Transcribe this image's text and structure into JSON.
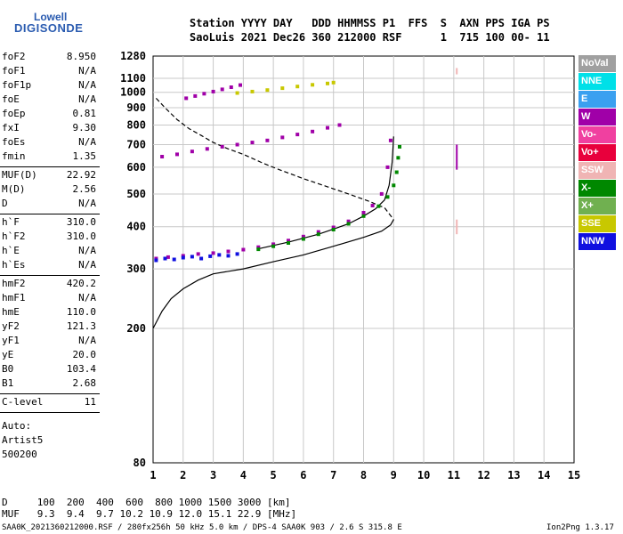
{
  "logo": {
    "line1": "Lowell",
    "line2": "DIGISONDE"
  },
  "header": {
    "line1": "Station YYYY DAY   DDD HHMMSS P1  FFS  S  AXN PPS IGA PS",
    "line2": "SaoLuis 2021 Dec26 360 212000 RSF      1  715 100 00- 11"
  },
  "params": [
    {
      "name": "foF2",
      "value": "8.950"
    },
    {
      "name": "foF1",
      "value": "N/A"
    },
    {
      "name": "foF1p",
      "value": "N/A"
    },
    {
      "name": "foE",
      "value": "N/A"
    },
    {
      "name": "foEp",
      "value": "0.81"
    },
    {
      "name": "fxI",
      "value": "9.30"
    },
    {
      "name": "foEs",
      "value": "N/A"
    },
    {
      "name": "fmin",
      "value": "1.35"
    },
    {
      "name": "MUF(D)",
      "value": "22.92"
    },
    {
      "name": "M(D)",
      "value": "2.56"
    },
    {
      "name": "D",
      "value": "N/A"
    },
    {
      "name": "h`F",
      "value": "310.0"
    },
    {
      "name": "h`F2",
      "value": "310.0"
    },
    {
      "name": "h`E",
      "value": "N/A"
    },
    {
      "name": "h`Es",
      "value": "N/A"
    },
    {
      "name": "hmF2",
      "value": "420.2"
    },
    {
      "name": "hmF1",
      "value": "N/A"
    },
    {
      "name": "hmE",
      "value": "110.0"
    },
    {
      "name": "yF2",
      "value": "121.3"
    },
    {
      "name": "yF1",
      "value": "N/A"
    },
    {
      "name": "yE",
      "value": "20.0"
    },
    {
      "name": "B0",
      "value": "103.4"
    },
    {
      "name": "B1",
      "value": "2.68"
    },
    {
      "name": "C-level",
      "value": "11"
    }
  ],
  "auto": {
    "line1": "Auto:",
    "line2": "Artist5",
    "line3": "500200"
  },
  "legend": [
    {
      "label": "NoVal",
      "color": "#a0a0a0"
    },
    {
      "label": "NNE",
      "color": "#00e0e8"
    },
    {
      "label": "E",
      "color": "#3aa0f0"
    },
    {
      "label": "W",
      "color": "#a000a8"
    },
    {
      "label": "Vo-",
      "color": "#f040a0"
    },
    {
      "label": "Vo+",
      "color": "#e8003c"
    },
    {
      "label": "SSW",
      "color": "#f0b4b4"
    },
    {
      "label": "X-",
      "color": "#008800"
    },
    {
      "label": "X+",
      "color": "#70b050"
    },
    {
      "label": "SSE",
      "color": "#c8c800"
    },
    {
      "label": "NNW",
      "color": "#1010e0"
    }
  ],
  "bottom": {
    "line1": "D     100  200  400  600  800 1000 1500 3000 [km]",
    "line2": "MUF   9.3  9.4  9.7 10.2 10.9 12.0 15.1 22.9 [MHz]"
  },
  "footer": {
    "left": "SAA0K_2021360212000.RSF / 280fx256h 50 kHz 5.0 km / DPS-4 SAA0K 903 / 2.6 S 315.8 E",
    "right": "Ion2Png 1.3.17"
  },
  "chart_data": {
    "type": "scatter",
    "x_ticks": [
      "1",
      "2",
      "3",
      "4",
      "5",
      "6",
      "7",
      "8",
      "9",
      "10",
      "11",
      "12",
      "13",
      "14",
      "15"
    ],
    "y_ticks": [
      "80",
      "200",
      "300",
      "400",
      "500",
      "600",
      "700",
      "800",
      "900",
      "1000",
      "1100",
      "1280"
    ],
    "xlim": [
      1,
      15
    ],
    "ylim": [
      80,
      1280
    ],
    "y_scale": "log",
    "grid": true,
    "series": [
      {
        "name": "W",
        "color": "#a000a8",
        "x": [
          1.1,
          1.5,
          2.0,
          2.5,
          3.0,
          3.5,
          4.0,
          4.5,
          5.0,
          5.5,
          6.0,
          6.5,
          7.0,
          7.5,
          8.0,
          8.3,
          8.6,
          8.8,
          8.9
        ],
        "y": [
          322,
          325,
          328,
          332,
          334,
          338,
          342,
          348,
          355,
          364,
          374,
          386,
          398,
          415,
          440,
          462,
          500,
          600,
          720
        ]
      },
      {
        "name": "X-",
        "color": "#008800",
        "x": [
          4.5,
          5.0,
          5.5,
          6.0,
          6.5,
          7.0,
          7.5,
          8.0,
          8.5,
          8.8,
          9.0,
          9.1,
          9.15,
          9.2
        ],
        "y": [
          343,
          350,
          358,
          368,
          380,
          392,
          408,
          430,
          460,
          490,
          530,
          580,
          640,
          690
        ]
      },
      {
        "name": "NNW",
        "color": "#1010e0",
        "x": [
          1.1,
          1.4,
          1.7,
          2.0,
          2.3,
          2.6,
          2.9,
          3.2,
          3.5,
          3.8
        ],
        "y": [
          318,
          322,
          320,
          324,
          326,
          322,
          327,
          330,
          328,
          332
        ]
      },
      {
        "name": "2-hop",
        "color": "#a000a8",
        "x": [
          1.3,
          1.8,
          2.3,
          2.8,
          3.3,
          3.8,
          4.3,
          4.8,
          5.3,
          5.8,
          6.3,
          6.8,
          7.2
        ],
        "y": [
          645,
          655,
          668,
          680,
          690,
          700,
          710,
          720,
          735,
          750,
          765,
          785,
          800
        ]
      },
      {
        "name": "3-hop",
        "color": "#a000a8",
        "x": [
          2.1,
          2.4,
          2.7,
          3.0,
          3.3,
          3.6,
          3.9
        ],
        "y": [
          960,
          975,
          990,
          1005,
          1020,
          1035,
          1050
        ]
      },
      {
        "name": "SSE",
        "color": "#c8c800",
        "x": [
          3.8,
          4.3,
          4.8,
          5.3,
          5.8,
          6.3,
          6.8,
          7.0
        ],
        "y": [
          995,
          1005,
          1015,
          1028,
          1040,
          1052,
          1062,
          1068
        ]
      }
    ],
    "lines": [
      {
        "style": "solid",
        "x": [
          1.0,
          1.3,
          1.6,
          2.0,
          2.5,
          3.0,
          4.0,
          5.0,
          6.0,
          7.0,
          8.0,
          8.6,
          8.9,
          9.0
        ],
        "y": [
          200,
          225,
          245,
          262,
          278,
          290,
          300,
          315,
          330,
          350,
          372,
          388,
          405,
          420
        ]
      },
      {
        "style": "solid",
        "x": [
          4.5,
          5.5,
          6.5,
          7.5,
          8.0,
          8.4,
          8.7,
          8.85,
          8.95,
          9.0
        ],
        "y": [
          344,
          360,
          380,
          408,
          430,
          452,
          480,
          530,
          620,
          740
        ]
      },
      {
        "style": "dashed",
        "x": [
          1.1,
          1.4,
          1.8,
          2.2,
          2.6,
          3.0,
          3.5,
          4.0,
          4.6,
          5.2,
          6.0,
          6.8,
          7.5,
          8.2,
          8.7,
          9.0
        ],
        "y": [
          960,
          900,
          830,
          780,
          745,
          710,
          680,
          655,
          620,
          590,
          555,
          525,
          500,
          475,
          455,
          420
        ]
      }
    ],
    "vertical_marks": [
      {
        "x": 11.1,
        "y": [
          1130,
          1180
        ],
        "color": "#f0b4b4"
      },
      {
        "x": 11.1,
        "y": [
          590,
          700
        ],
        "color": "#a000a8"
      },
      {
        "x": 11.1,
        "y": [
          380,
          420
        ],
        "color": "#f0b4b4"
      }
    ]
  }
}
